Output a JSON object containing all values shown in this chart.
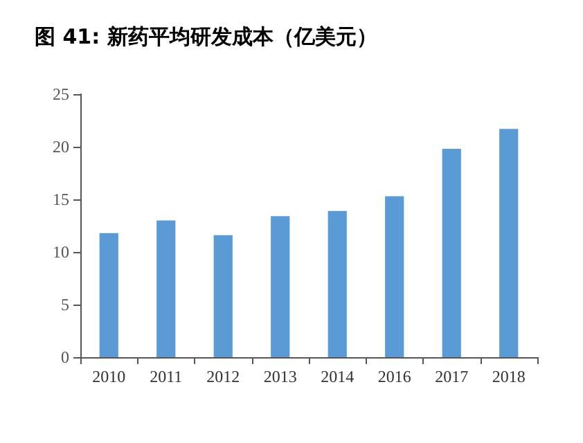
{
  "chart_data": {
    "type": "bar",
    "title": "图 41: 新药平均研发成本（亿美元）",
    "categories": [
      "2010",
      "2011",
      "2012",
      "2013",
      "2014",
      "2016",
      "2017",
      "2018"
    ],
    "values": [
      11.8,
      13.0,
      11.6,
      13.4,
      13.9,
      15.3,
      19.8,
      21.7
    ],
    "color": "#5b9bd5",
    "ylim": [
      0,
      25
    ],
    "yticks": [
      0,
      5,
      10,
      15,
      20,
      25
    ],
    "grid": false
  }
}
